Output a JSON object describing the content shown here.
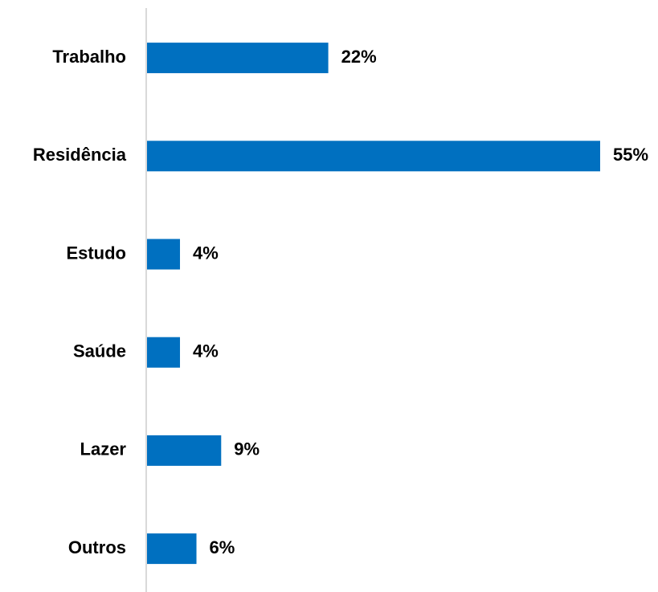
{
  "chart_data": {
    "type": "hbar",
    "categories": [
      "Trabalho",
      "Residência",
      "Estudo",
      "Saúde",
      "Lazer",
      "Outros"
    ],
    "values": [
      22,
      55,
      4,
      4,
      9,
      6
    ],
    "value_labels": [
      "22%",
      "55%",
      "4%",
      "4%",
      "9%",
      "6%"
    ],
    "color": "#0070c0"
  }
}
